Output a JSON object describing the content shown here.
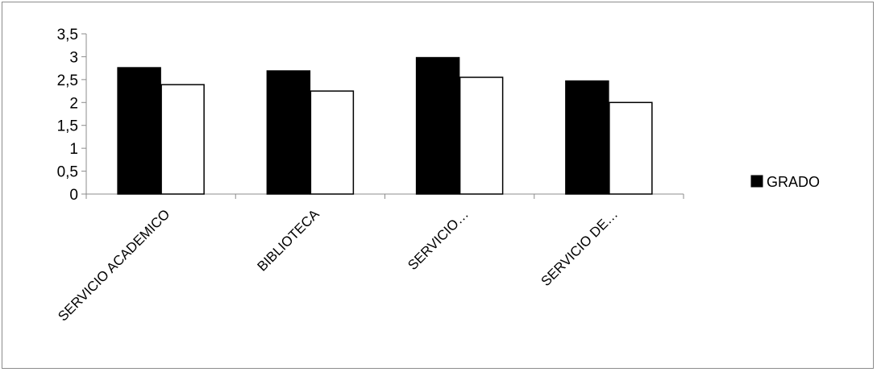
{
  "chart_data": {
    "type": "bar",
    "title": "",
    "xlabel": "",
    "ylabel": "",
    "categories": [
      "SERVICIO ACADEMICO",
      "BIBLIOTECA",
      "SERVICIO…",
      "SERVICIO DE…"
    ],
    "series": [
      {
        "name": "GRADO",
        "color": "#000000",
        "values": [
          2.76,
          2.69,
          2.98,
          2.47
        ]
      },
      {
        "color": "#ffffff",
        "values": [
          2.39,
          2.25,
          2.55,
          2.0
        ]
      }
    ],
    "ylim": [
      0,
      3.5
    ],
    "yticks": [
      "0",
      "0,5",
      "1",
      "1,5",
      "2",
      "2,5",
      "3",
      "3,5"
    ],
    "grid": false,
    "legend": {
      "position": "right",
      "entries": [
        "GRADO"
      ]
    }
  }
}
